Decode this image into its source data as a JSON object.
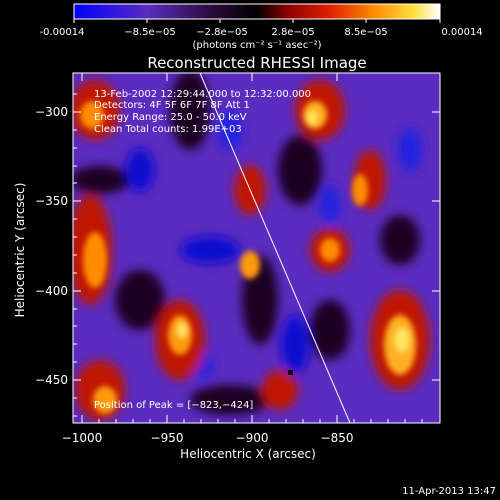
{
  "colorbar": {
    "tick_labels": [
      "-0.00014",
      "−8.5e−05",
      "−2.8e−05",
      "2.8e−05",
      "8.5e−05",
      "0.00014"
    ],
    "units": "(photons cm⁻² s⁻¹ asec⁻²)",
    "colors": [
      "#0000ff",
      "#5a2cc0",
      "#2a0a3a",
      "#000000",
      "#8a0000",
      "#e02000",
      "#ff8c00",
      "#ffe040",
      "#ffffff"
    ]
  },
  "image": {
    "title": "Reconstructed RHESSI Image",
    "info": {
      "time_range": "13-Feb-2002 12:29:44.000 to 12:32:00.000",
      "detectors": "Detectors: 4F 5F 6F 7F 8F   Att 1",
      "energy": "Energy Range: 25.0 - 50.0 keV",
      "method": "Clean      Total counts: 1.99E+03"
    },
    "peak_label": "Position of Peak = [−823,−424]",
    "limb_line": "on",
    "peak_marker": "on"
  },
  "axes": {
    "xlabel": "Heliocentric X (arcsec)",
    "ylabel": "Heliocentric Y (arcsec)",
    "x_ticks": [
      "−1000",
      "−950",
      "−900",
      "−850"
    ],
    "y_ticks": [
      "−300",
      "−350",
      "−400",
      "−450"
    ]
  },
  "footer": {
    "timestamp": "11-Apr-2013 13:47"
  }
}
